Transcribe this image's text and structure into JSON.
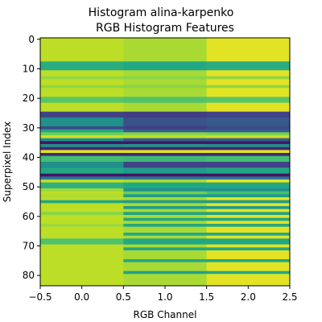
{
  "chart_data": {
    "type": "heatmap",
    "title_lines": [
      "Histogram alina-karpenko",
      "RGB Histogram Features"
    ],
    "xlabel": "RGB Channel",
    "ylabel": "Superpixel Index",
    "xlim": [
      -0.5,
      2.5
    ],
    "ylim": [
      -0.5,
      83.5
    ],
    "x_ticks": [
      -0.5,
      0.0,
      0.5,
      1.0,
      1.5,
      2.0,
      2.5
    ],
    "x_tick_labels": [
      "−0.5",
      "0.0",
      "0.5",
      "1.0",
      "1.5",
      "2.0",
      "2.5"
    ],
    "y_ticks": [
      0,
      10,
      20,
      30,
      40,
      50,
      60,
      70,
      80
    ],
    "y_tick_labels": [
      "0",
      "10",
      "20",
      "30",
      "40",
      "50",
      "60",
      "70",
      "80"
    ],
    "colormap": "viridis",
    "value_range": [
      0,
      1
    ],
    "default_values": [
      0.9,
      0.87,
      0.96
    ],
    "row_bands": [
      {
        "rows": [
          8,
          10
        ],
        "values": [
          0.62,
          0.6,
          0.62
        ]
      },
      {
        "rows": [
          13,
          13
        ],
        "values": [
          0.84,
          0.82,
          0.84
        ]
      },
      {
        "rows": [
          16,
          16
        ],
        "values": [
          0.84,
          0.82,
          0.84
        ]
      },
      {
        "rows": [
          20,
          21
        ],
        "values": [
          0.74,
          0.72,
          0.74
        ]
      },
      {
        "rows": [
          25,
          26
        ],
        "values": [
          0.2,
          0.18,
          0.2
        ]
      },
      {
        "rows": [
          27,
          29
        ],
        "values": [
          0.5,
          0.25,
          0.28
        ]
      },
      {
        "rows": [
          30,
          30
        ],
        "values": [
          0.22,
          0.18,
          0.22
        ]
      },
      {
        "rows": [
          31,
          31
        ],
        "values": [
          0.6,
          0.3,
          0.3
        ]
      },
      {
        "rows": [
          32,
          32
        ],
        "values": [
          0.78,
          0.82,
          0.8
        ]
      },
      {
        "rows": [
          33,
          33
        ],
        "values": [
          0.92,
          0.9,
          0.92
        ]
      },
      {
        "rows": [
          34,
          34
        ],
        "values": [
          0.5,
          0.3,
          0.3
        ]
      },
      {
        "rows": [
          35,
          35
        ],
        "values": [
          0.06,
          0.06,
          0.06
        ]
      },
      {
        "rows": [
          36,
          36
        ],
        "values": [
          0.5,
          0.52,
          0.5
        ]
      },
      {
        "rows": [
          37,
          37
        ],
        "values": [
          0.1,
          0.1,
          0.1
        ]
      },
      {
        "rows": [
          38,
          38
        ],
        "values": [
          0.95,
          0.95,
          0.95
        ]
      },
      {
        "rows": [
          39,
          39
        ],
        "values": [
          0.1,
          0.1,
          0.1
        ]
      },
      {
        "rows": [
          40,
          41
        ],
        "values": [
          0.7,
          0.68,
          0.7
        ]
      },
      {
        "rows": [
          42,
          43
        ],
        "values": [
          0.5,
          0.2,
          0.2
        ]
      },
      {
        "rows": [
          44,
          45
        ],
        "values": [
          0.6,
          0.55,
          0.6
        ]
      },
      {
        "rows": [
          46,
          46
        ],
        "values": [
          0.05,
          0.05,
          0.05
        ]
      },
      {
        "rows": [
          47,
          47
        ],
        "values": [
          0.4,
          0.4,
          0.4
        ]
      },
      {
        "rows": [
          49,
          50
        ],
        "values": [
          0.64,
          0.6,
          0.6
        ]
      },
      {
        "rows": [
          51,
          51
        ],
        "values": [
          0.85,
          0.5,
          0.5
        ]
      },
      {
        "rows": [
          52,
          52
        ],
        "values": [
          0.9,
          0.78,
          0.7
        ]
      },
      {
        "rows": [
          53,
          53
        ],
        "values": [
          0.88,
          0.55,
          0.55
        ]
      },
      {
        "rows": [
          55,
          55
        ],
        "values": [
          0.6,
          0.55,
          0.55
        ]
      },
      {
        "rows": [
          57,
          57
        ],
        "values": [
          0.9,
          0.55,
          0.55
        ]
      },
      {
        "rows": [
          59,
          59
        ],
        "values": [
          0.82,
          0.58,
          0.58
        ]
      },
      {
        "rows": [
          61,
          61
        ],
        "values": [
          0.9,
          0.6,
          0.6
        ]
      },
      {
        "rows": [
          63,
          63
        ],
        "values": [
          0.85,
          0.6,
          0.6
        ]
      },
      {
        "rows": [
          66,
          66
        ],
        "values": [
          0.9,
          0.6,
          0.6
        ]
      },
      {
        "rows": [
          68,
          69
        ],
        "values": [
          0.72,
          0.6,
          0.6
        ]
      },
      {
        "rows": [
          71,
          71
        ],
        "values": [
          0.9,
          0.6,
          0.6
        ]
      },
      {
        "rows": [
          75,
          75
        ],
        "values": [
          0.9,
          0.6,
          0.6
        ]
      },
      {
        "rows": [
          79,
          79
        ],
        "values": [
          0.9,
          0.58,
          0.6
        ]
      }
    ]
  }
}
